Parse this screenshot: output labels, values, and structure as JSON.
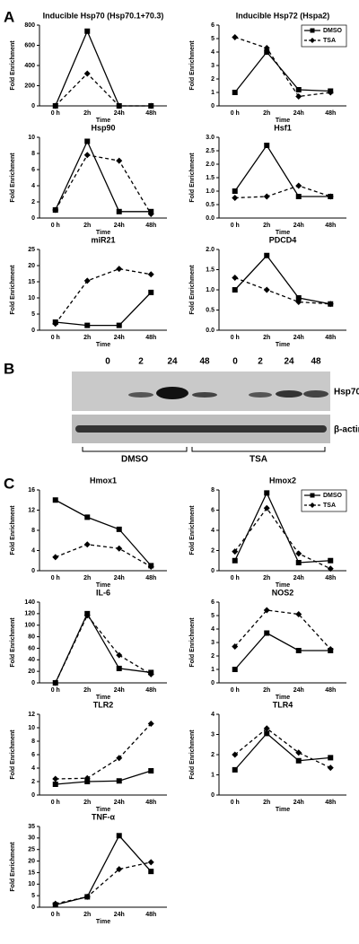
{
  "panels": [
    "A",
    "B",
    "C"
  ],
  "blot": {
    "lanes": [
      "0",
      "2",
      "24",
      "48",
      "0",
      "2",
      "24",
      "48"
    ],
    "rows": [
      "Hsp70",
      "β-actin"
    ],
    "groups": [
      "DMSO",
      "TSA"
    ]
  },
  "chart_data": [
    {
      "type": "line",
      "title": "Inducible Hsp70 (Hsp70.1+70.3)",
      "x_label": "Time",
      "y_label": "Fold Enrichment",
      "categories": [
        "0 h",
        "2h",
        "24h",
        "48h"
      ],
      "ylim": [
        0,
        800
      ],
      "yticks": [
        0,
        200,
        400,
        600,
        800
      ],
      "legend": false,
      "series": [
        {
          "name": "DMSO",
          "color": "#000000",
          "dash": false,
          "marker": "square",
          "values": [
            0,
            740,
            0,
            0
          ]
        },
        {
          "name": "TSA",
          "color": "#000000",
          "dash": true,
          "marker": "diamond",
          "values": [
            0,
            320,
            0,
            0
          ]
        }
      ]
    },
    {
      "type": "line",
      "title": "Inducible Hsp72 (Hspa2)",
      "x_label": "Time",
      "y_label": "Fold Enrichment",
      "categories": [
        "0 h",
        "2h",
        "24h",
        "48h"
      ],
      "ylim": [
        0,
        6
      ],
      "yticks": [
        0,
        1,
        2,
        3,
        4,
        5,
        6
      ],
      "legend": true,
      "legend_position": "upper right",
      "series": [
        {
          "name": "DMSO",
          "color": "#000000",
          "dash": false,
          "marker": "square",
          "values": [
            1,
            4,
            1.2,
            1.1
          ]
        },
        {
          "name": "TSA",
          "color": "#000000",
          "dash": true,
          "marker": "diamond",
          "values": [
            5.1,
            4.3,
            0.7,
            1.0
          ]
        }
      ]
    },
    {
      "type": "line",
      "title": "Hsp90",
      "x_label": "Time",
      "y_label": "Fold Enrichment",
      "categories": [
        "0 h",
        "2h",
        "24h",
        "48h"
      ],
      "ylim": [
        0,
        10
      ],
      "yticks": [
        0,
        2,
        4,
        6,
        8,
        10
      ],
      "legend": false,
      "series": [
        {
          "name": "DMSO",
          "color": "#000000",
          "dash": false,
          "marker": "square",
          "values": [
            1,
            9.5,
            0.8,
            0.8
          ]
        },
        {
          "name": "TSA",
          "color": "#000000",
          "dash": true,
          "marker": "diamond",
          "values": [
            1,
            7.8,
            7.1,
            0.5
          ]
        }
      ]
    },
    {
      "type": "line",
      "title": "Hsf1",
      "x_label": "Time",
      "y_label": "Fold Enrichment",
      "categories": [
        "0 h",
        "2h",
        "24h",
        "48h"
      ],
      "ylim": [
        0,
        3
      ],
      "yticks": [
        {
          "value": 0,
          "label": "0.0"
        },
        0.5,
        {
          "value": 1,
          "label": "1.0"
        },
        1.5,
        {
          "value": 2,
          "label": "2.0"
        },
        2.5,
        {
          "value": 3,
          "label": "3.0"
        }
      ],
      "legend": false,
      "series": [
        {
          "name": "DMSO",
          "color": "#000000",
          "dash": false,
          "marker": "square",
          "values": [
            1,
            2.7,
            0.8,
            0.8
          ]
        },
        {
          "name": "TSA",
          "color": "#000000",
          "dash": true,
          "marker": "diamond",
          "values": [
            0.75,
            0.8,
            1.2,
            0.8
          ]
        }
      ]
    },
    {
      "type": "line",
      "title": "miR21",
      "x_label": "Time",
      "y_label": "Fold Enrichment",
      "categories": [
        "0 h",
        "2h",
        "24h",
        "48h"
      ],
      "ylim": [
        0,
        25
      ],
      "yticks": [
        0,
        5,
        10,
        15,
        20,
        25
      ],
      "legend": false,
      "series": [
        {
          "name": "DMSO",
          "color": "#000000",
          "dash": false,
          "marker": "square",
          "values": [
            2.5,
            1.5,
            1.5,
            11.7
          ]
        },
        {
          "name": "TSA",
          "color": "#000000",
          "dash": true,
          "marker": "diamond",
          "values": [
            2,
            15.3,
            19,
            17.3
          ]
        }
      ]
    },
    {
      "type": "line",
      "title": "PDCD4",
      "x_label": "Time",
      "y_label": "Fold Enrichment",
      "categories": [
        "0 h",
        "2h",
        "24h",
        "48h"
      ],
      "ylim": [
        0,
        2
      ],
      "yticks": [
        {
          "value": 0,
          "label": "0.0"
        },
        0.5,
        {
          "value": 1,
          "label": "1.0"
        },
        1.5,
        {
          "value": 2,
          "label": "2.0"
        }
      ],
      "legend": false,
      "series": [
        {
          "name": "DMSO",
          "color": "#000000",
          "dash": false,
          "marker": "square",
          "values": [
            1,
            1.85,
            0.8,
            0.65
          ]
        },
        {
          "name": "TSA",
          "color": "#000000",
          "dash": true,
          "marker": "diamond",
          "values": [
            1.3,
            1.0,
            0.7,
            0.65
          ]
        }
      ]
    },
    {
      "type": "line",
      "title": "Hmox1",
      "x_label": "Time",
      "y_label": "Fold Enrichment",
      "categories": [
        "0 h",
        "2h",
        "24h",
        "48h"
      ],
      "ylim": [
        0,
        16
      ],
      "yticks": [
        0,
        4,
        8,
        12,
        16
      ],
      "legend": false,
      "series": [
        {
          "name": "DMSO",
          "color": "#000000",
          "dash": false,
          "marker": "square",
          "values": [
            14,
            10.6,
            8.2,
            1
          ]
        },
        {
          "name": "TSA",
          "color": "#000000",
          "dash": true,
          "marker": "diamond",
          "values": [
            2.7,
            5.2,
            4.4,
            0.8
          ]
        }
      ]
    },
    {
      "type": "line",
      "title": "Hmox2",
      "x_label": "Time",
      "y_label": "Fold Enrichment",
      "categories": [
        "0 h",
        "2h",
        "24h",
        "48h"
      ],
      "ylim": [
        0,
        8
      ],
      "yticks": [
        0,
        2,
        4,
        6,
        8
      ],
      "legend": true,
      "legend_position": "upper right",
      "series": [
        {
          "name": "DMSO",
          "color": "#000000",
          "dash": false,
          "marker": "square",
          "values": [
            1,
            7.7,
            0.8,
            1
          ]
        },
        {
          "name": "TSA",
          "color": "#000000",
          "dash": true,
          "marker": "diamond",
          "values": [
            1.9,
            6.2,
            1.7,
            0.2
          ]
        }
      ]
    },
    {
      "type": "line",
      "title": "IL-6",
      "x_label": "Time",
      "y_label": "Fold Enrichment",
      "categories": [
        "0 h",
        "2h",
        "24h",
        "48h"
      ],
      "ylim": [
        0,
        140
      ],
      "yticks": [
        0,
        20,
        40,
        60,
        80,
        100,
        120,
        140
      ],
      "legend": false,
      "series": [
        {
          "name": "DMSO",
          "color": "#000000",
          "dash": false,
          "marker": "square",
          "values": [
            0,
            120,
            25,
            18
          ]
        },
        {
          "name": "TSA",
          "color": "#000000",
          "dash": true,
          "marker": "diamond",
          "values": [
            0,
            117,
            48,
            15
          ]
        }
      ]
    },
    {
      "type": "line",
      "title": "NOS2",
      "x_label": "Time",
      "y_label": "Fold Enrichment",
      "categories": [
        "0 h",
        "2h",
        "24h",
        "48h"
      ],
      "ylim": [
        0,
        6
      ],
      "yticks": [
        0,
        1,
        2,
        3,
        4,
        5,
        6
      ],
      "legend": false,
      "series": [
        {
          "name": "DMSO",
          "color": "#000000",
          "dash": false,
          "marker": "square",
          "values": [
            1,
            3.7,
            2.4,
            2.4
          ]
        },
        {
          "name": "TSA",
          "color": "#000000",
          "dash": true,
          "marker": "diamond",
          "values": [
            2.7,
            5.4,
            5.1,
            2.5
          ]
        }
      ]
    },
    {
      "type": "line",
      "title": "TLR2",
      "x_label": "Time",
      "y_label": "Fold Enrichment",
      "categories": [
        "0 h",
        "2h",
        "24h",
        "48h"
      ],
      "ylim": [
        0,
        12
      ],
      "yticks": [
        0,
        2,
        4,
        6,
        8,
        10,
        12
      ],
      "legend": false,
      "series": [
        {
          "name": "DMSO",
          "color": "#000000",
          "dash": false,
          "marker": "square",
          "values": [
            1.6,
            2,
            2.1,
            3.6
          ]
        },
        {
          "name": "TSA",
          "color": "#000000",
          "dash": true,
          "marker": "diamond",
          "values": [
            2.4,
            2.5,
            5.5,
            10.6
          ]
        }
      ]
    },
    {
      "type": "line",
      "title": "TLR4",
      "x_label": "Time",
      "y_label": "Fold Enrichment",
      "categories": [
        "0 h",
        "2h",
        "24h",
        "48h"
      ],
      "ylim": [
        0,
        4
      ],
      "yticks": [
        0,
        1,
        2,
        3,
        4
      ],
      "legend": false,
      "series": [
        {
          "name": "DMSO",
          "color": "#000000",
          "dash": false,
          "marker": "square",
          "values": [
            1.25,
            3.05,
            1.7,
            1.85
          ]
        },
        {
          "name": "TSA",
          "color": "#000000",
          "dash": true,
          "marker": "diamond",
          "values": [
            2,
            3.3,
            2.1,
            1.35
          ]
        }
      ]
    },
    {
      "type": "line",
      "title": "TNF-α",
      "x_label": "Time",
      "y_label": "Fold Enrichment",
      "categories": [
        "0 h",
        "2h",
        "24h",
        "48h"
      ],
      "ylim": [
        0,
        35
      ],
      "yticks": [
        0,
        5,
        10,
        15,
        20,
        25,
        30,
        35
      ],
      "legend": false,
      "series": [
        {
          "name": "DMSO",
          "color": "#000000",
          "dash": false,
          "marker": "square",
          "values": [
            1,
            4.5,
            31,
            15.5
          ]
        },
        {
          "name": "TSA",
          "color": "#000000",
          "dash": true,
          "marker": "diamond",
          "values": [
            1.5,
            4.5,
            16.5,
            19.5
          ]
        }
      ]
    }
  ]
}
